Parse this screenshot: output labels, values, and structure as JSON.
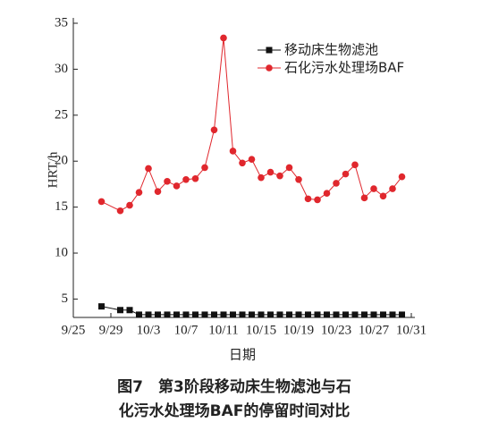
{
  "chart_data": {
    "type": "line",
    "caption": [
      "图7　第3阶段移动床生物滤池与石",
      "化污水处理场BAF的停留时间对比"
    ],
    "x_label": "日期",
    "y_label": "HRT/h",
    "x": [
      "9/28",
      "9/30",
      "10/1",
      "10/2",
      "10/3",
      "10/4",
      "10/5",
      "10/6",
      "10/7",
      "10/8",
      "10/9",
      "10/10",
      "10/11",
      "10/12",
      "10/13",
      "10/14",
      "10/15",
      "10/16",
      "10/17",
      "10/18",
      "10/19",
      "10/20",
      "10/21",
      "10/22",
      "10/23",
      "10/24",
      "10/25",
      "10/26",
      "10/27",
      "10/28",
      "10/29",
      "10/30"
    ],
    "xlim": [
      "9/25",
      "10/31"
    ],
    "xticks": [
      "9/25",
      "9/29",
      "10/3",
      "10/7",
      "10/11",
      "10/15",
      "10/19",
      "10/23",
      "10/27",
      "10/31"
    ],
    "ylim": [
      3,
      35
    ],
    "yticks": [
      5,
      10,
      15,
      20,
      25,
      30,
      35
    ],
    "legend": "upper right",
    "series": [
      {
        "name": "移动床生物滤池",
        "color": "#111111",
        "marker": "square",
        "values": [
          4.2,
          3.8,
          3.8,
          3.3,
          3.3,
          3.3,
          3.3,
          3.3,
          3.3,
          3.3,
          3.3,
          3.3,
          3.3,
          3.3,
          3.3,
          3.3,
          3.3,
          3.3,
          3.3,
          3.3,
          3.3,
          3.3,
          3.3,
          3.3,
          3.3,
          3.3,
          3.3,
          3.3,
          3.3,
          3.3,
          3.3,
          3.3
        ]
      },
      {
        "name": "石化污水处理场BAF",
        "color": "#e0272d",
        "marker": "circle",
        "values": [
          15.6,
          14.6,
          15.2,
          16.6,
          19.2,
          16.7,
          17.8,
          17.3,
          18.0,
          18.1,
          19.3,
          23.4,
          33.4,
          21.1,
          19.8,
          20.2,
          18.2,
          18.8,
          18.4,
          19.3,
          18.0,
          15.9,
          15.8,
          16.5,
          17.6,
          18.6,
          19.6,
          16.0,
          17.0,
          16.2,
          17.0,
          18.3
        ]
      }
    ]
  }
}
